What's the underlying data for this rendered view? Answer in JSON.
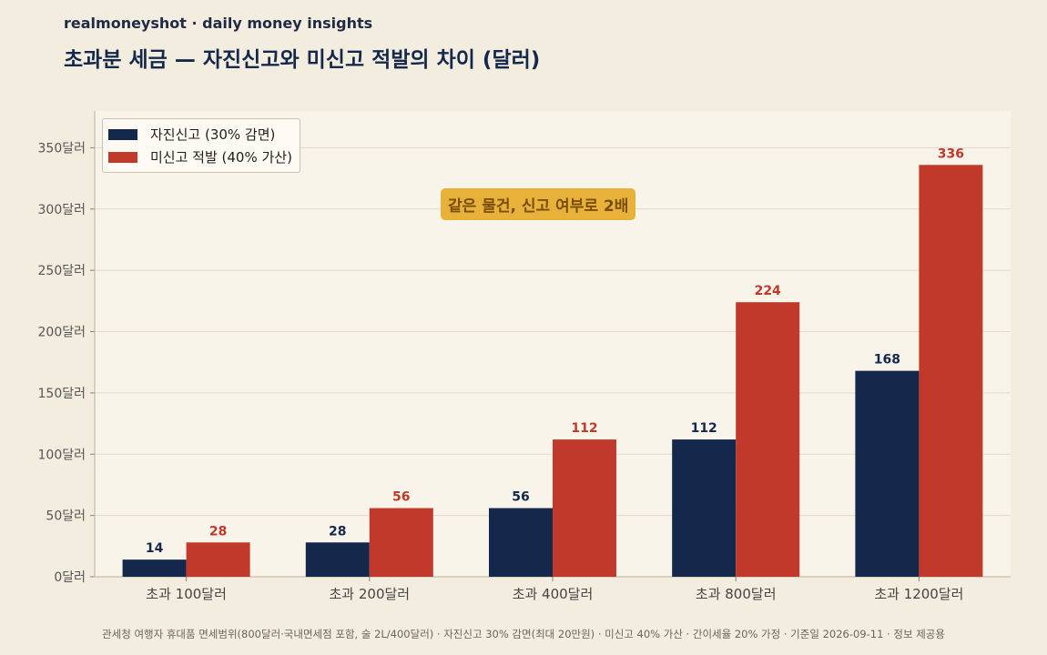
{
  "header": {
    "brand": "realmoneyshot · daily money insights",
    "title": "초과분 세금 — 자진신고와 미신고 적발의 차이 (달러)"
  },
  "annotation": "같은 물건, 신고 여부로 2배",
  "footer": "관세청 여행자 휴대품 면세범위(800달러·국내면세점 포함, 술 2L/400달러) · 자진신고 30% 감면(최대 20만원) · 미신고 40% 가산 · 간이세율 20% 가정 · 기준일 2026-09-11 · 정보 제공용",
  "colors": {
    "background": "#f3ede0",
    "plot_background": "#f9f4ea",
    "self_report": "#14284b",
    "undeclared": "#c0392b",
    "callout": "#e8b23a"
  },
  "chart_data": {
    "type": "bar",
    "categories": [
      "초과 100달러",
      "초과 200달러",
      "초과 400달러",
      "초과 800달러",
      "초과 1200달러"
    ],
    "series": [
      {
        "name": "자진신고 (30% 감면)",
        "values": [
          14,
          28,
          56,
          112,
          168
        ],
        "color": "#14284b"
      },
      {
        "name": "미신고 적발 (40% 가산)",
        "values": [
          28,
          56,
          112,
          224,
          336
        ],
        "color": "#c0392b"
      }
    ],
    "yticks": [
      0,
      50,
      100,
      150,
      200,
      250,
      300,
      350
    ],
    "ytick_labels": [
      "0달러",
      "50달러",
      "100달러",
      "150달러",
      "200달러",
      "250달러",
      "300달러",
      "350달러"
    ],
    "ylim": [
      0,
      380
    ],
    "grid": true,
    "legend_position": "top-left",
    "data_labels": true
  }
}
